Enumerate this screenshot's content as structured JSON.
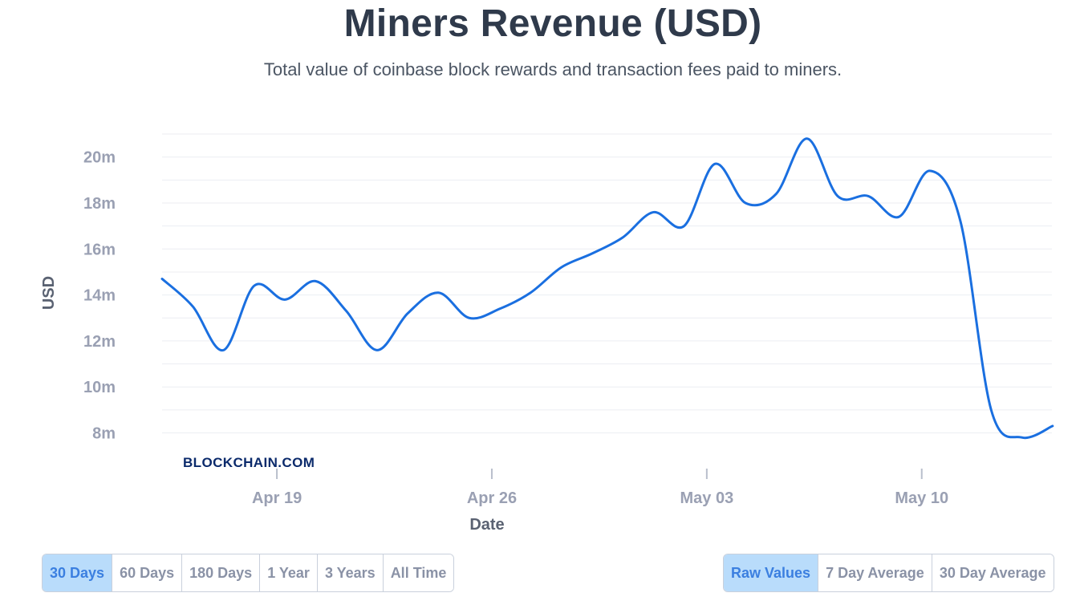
{
  "header": {
    "title": "Miners Revenue (USD)",
    "subtitle": "Total value of coinbase block rewards and transaction fees paid to miners."
  },
  "watermark": "BLOCKCHAIN.COM",
  "colors": {
    "line": "#1a6fe0",
    "active_button_bg": "#b9dcfb",
    "active_button_text": "#3b7fe0"
  },
  "range_buttons": [
    {
      "label": "30 Days",
      "active": true
    },
    {
      "label": "60 Days",
      "active": false
    },
    {
      "label": "180 Days",
      "active": false
    },
    {
      "label": "1 Year",
      "active": false
    },
    {
      "label": "3 Years",
      "active": false
    },
    {
      "label": "All Time",
      "active": false
    }
  ],
  "mode_buttons": [
    {
      "label": "Raw Values",
      "active": true
    },
    {
      "label": "7 Day Average",
      "active": false
    },
    {
      "label": "30 Day Average",
      "active": false
    }
  ],
  "chart_data": {
    "type": "line",
    "title": "Miners Revenue (USD)",
    "xlabel": "Date",
    "ylabel": "USD",
    "ylim": [
      7,
      21.5
    ],
    "y_ticks": [
      {
        "value": 8,
        "label": "8m"
      },
      {
        "value": 10,
        "label": "10m"
      },
      {
        "value": 12,
        "label": "12m"
      },
      {
        "value": 14,
        "label": "14m"
      },
      {
        "value": 16,
        "label": "16m"
      },
      {
        "value": 18,
        "label": "18m"
      },
      {
        "value": 20,
        "label": "20m"
      }
    ],
    "x_ticks": [
      {
        "label": "Apr 19"
      },
      {
        "label": "Apr 26"
      },
      {
        "label": "May 03"
      },
      {
        "label": "May 10"
      }
    ],
    "x": [
      "Apr 15",
      "Apr 16",
      "Apr 17",
      "Apr 18",
      "Apr 19",
      "Apr 20",
      "Apr 21",
      "Apr 22",
      "Apr 23",
      "Apr 24",
      "Apr 25",
      "Apr 26",
      "Apr 27",
      "Apr 28",
      "Apr 29",
      "Apr 30",
      "May 01",
      "May 02",
      "May 03",
      "May 04",
      "May 05",
      "May 06",
      "May 07",
      "May 08",
      "May 09",
      "May 10",
      "May 11",
      "May 12",
      "May 13",
      "May 14"
    ],
    "series": [
      {
        "values": [
          14.7,
          13.5,
          11.6,
          14.4,
          13.8,
          14.6,
          13.3,
          11.6,
          13.2,
          14.1,
          13.0,
          13.4,
          14.1,
          15.2,
          15.8,
          16.5,
          17.6,
          17.0,
          19.7,
          18.0,
          18.4,
          20.8,
          18.3,
          18.3,
          17.4,
          19.4,
          17.2,
          9.0,
          7.8,
          8.3
        ]
      }
    ],
    "grid": true,
    "legend": "none"
  }
}
